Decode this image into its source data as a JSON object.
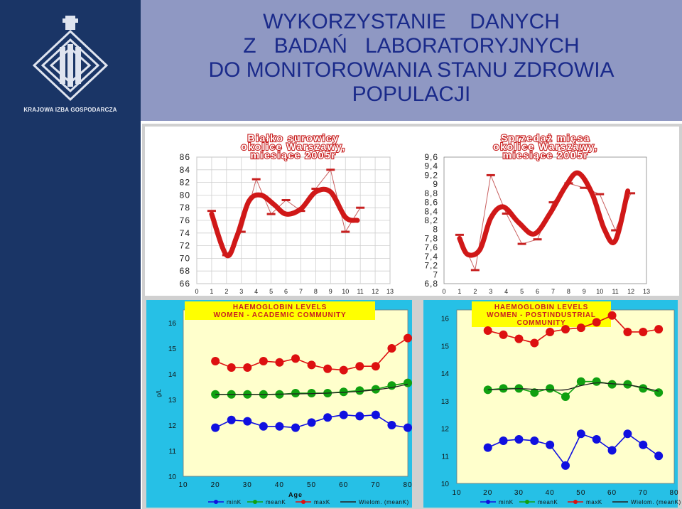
{
  "slide": {
    "title_lines": [
      "WYKORZYSTANIE    DANYCH",
      "Z   BADAŃ   LABORATORYJNYCH",
      "DO MONITOROWANIA STANU ZDROWIA",
      "POPULACJI"
    ],
    "logo_caption": "KRAJOWA IZBA GOSPODARCZA",
    "colors": {
      "sidebar": "#1a3566",
      "header": "#8f98c3",
      "title_text": "#1a2a8a",
      "chart_title": "#c82020",
      "hb_bg": "#26c0e6",
      "hb_plot": "#ffffcc"
    }
  },
  "chart_data": [
    {
      "id": "bialko",
      "type": "line",
      "title_lines": [
        "Białko surowicy",
        "okolice Warszawy,",
        "miesiące 2005r"
      ],
      "x_ticks": [
        "0",
        "1",
        "2",
        "3",
        "4",
        "5",
        "6",
        "7",
        "8",
        "9",
        "10",
        "11",
        "12",
        "13"
      ],
      "y_ticks": [
        "66",
        "68",
        "70",
        "72",
        "74",
        "76",
        "78",
        "80",
        "82",
        "84",
        "86"
      ],
      "ylim": [
        66,
        86
      ],
      "xlim": [
        0,
        13
      ],
      "grid": true,
      "series": [
        {
          "x": [
            1,
            2,
            3,
            4,
            5,
            6,
            7,
            8,
            9,
            10,
            11,
            12
          ],
          "values": [
            77.5,
            70.5,
            74.2,
            82.5,
            77,
            79.2,
            77.5,
            81,
            84,
            74.2,
            78,
            null
          ],
          "style": "thin-markers"
        }
      ],
      "trend": [
        77,
        70.5,
        73.5,
        79,
        80,
        78.5,
        77,
        77.8,
        80.5,
        80.5,
        76.5,
        76
      ],
      "trend_x": [
        1,
        2,
        2.7,
        3.5,
        4.3,
        5.2,
        6,
        7,
        8,
        9,
        10,
        10.8
      ]
    },
    {
      "id": "sprzedaz",
      "type": "line",
      "title_lines": [
        "Sprzedaż mięsa",
        "okolice Warszawy,",
        "miesiące 2005r"
      ],
      "x_ticks": [
        "0",
        "1",
        "2",
        "3",
        "4",
        "5",
        "6",
        "7",
        "8",
        "9",
        "10",
        "11",
        "12",
        "13"
      ],
      "y_ticks": [
        "6,8",
        "7",
        "7,2",
        "7,4",
        "7,6",
        "7,8",
        "8",
        "8,2",
        "8,4",
        "8,6",
        "8,8",
        "9",
        "9,2",
        "9,4",
        "9,6"
      ],
      "ylim": [
        6.8,
        9.6
      ],
      "xlim": [
        0,
        13
      ],
      "grid": false,
      "series": [
        {
          "x": [
            1,
            2,
            3,
            4,
            5,
            6,
            7,
            8,
            9,
            10,
            11,
            12
          ],
          "values": [
            7.88,
            7.1,
            9.2,
            8.35,
            7.68,
            7.78,
            8.6,
            9.02,
            8.92,
            8.78,
            7.98,
            8.8
          ],
          "style": "thin-markers"
        }
      ],
      "trend": [
        7.8,
        7.45,
        7.55,
        8.25,
        8.5,
        8.15,
        7.9,
        8.35,
        8.95,
        9.25,
        8.8,
        8.0,
        7.75,
        8.85
      ],
      "trend_x": [
        1,
        1.5,
        2.3,
        3,
        3.8,
        4.8,
        5.8,
        6.8,
        7.8,
        8.6,
        9.5,
        10.3,
        11,
        11.8
      ]
    },
    {
      "id": "hb-academic",
      "type": "line",
      "title_lines": [
        "HAEMOGLOBIN LEVELS",
        "WOMEN - ACADEMIC COMMUNITY"
      ],
      "xlabel": "Age",
      "ylabel": "g/L",
      "y_ticks": [
        "10",
        "11",
        "12",
        "13",
        "14",
        "15",
        "16"
      ],
      "x_ticks": [
        "10",
        "20",
        "30",
        "40",
        "50",
        "60",
        "70",
        "80"
      ],
      "ylim": [
        10,
        16.5
      ],
      "xlim": [
        10,
        80
      ],
      "legend": [
        "minK",
        "meanK",
        "maxK",
        "Wielom. (meanK)"
      ],
      "legend_position": "bottom",
      "x": [
        20,
        25,
        30,
        35,
        40,
        45,
        50,
        55,
        60,
        65,
        70,
        75,
        80
      ],
      "series": [
        {
          "name": "minK",
          "color": "#1010e0",
          "values": [
            11.9,
            12.2,
            12.15,
            11.95,
            11.95,
            11.9,
            12.1,
            12.3,
            12.4,
            12.35,
            12.4,
            12.0,
            11.9
          ]
        },
        {
          "name": "meanK",
          "color": "#10a010",
          "values": [
            13.2,
            13.2,
            13.2,
            13.2,
            13.2,
            13.25,
            13.25,
            13.25,
            13.3,
            13.35,
            13.4,
            13.55,
            13.65
          ]
        },
        {
          "name": "maxK",
          "color": "#dd1010",
          "values": [
            14.5,
            14.25,
            14.25,
            14.5,
            14.45,
            14.6,
            14.35,
            14.2,
            14.15,
            14.3,
            14.3,
            15.0,
            15.4
          ]
        },
        {
          "name": "Wielom. (meanK)",
          "color": "#202020",
          "values": [
            13.2,
            13.2,
            13.2,
            13.2,
            13.21,
            13.22,
            13.23,
            13.25,
            13.28,
            13.32,
            13.38,
            13.47,
            13.6
          ]
        }
      ]
    },
    {
      "id": "hb-postindustrial",
      "type": "line",
      "title_lines": [
        "HAEMOGLOBIN LEVELS",
        "WOMEN - POSTINDUSTRIAL",
        "COMMUNITY"
      ],
      "y_ticks": [
        "10",
        "11",
        "12",
        "13",
        "14",
        "15",
        "16"
      ],
      "x_ticks": [
        "10",
        "20",
        "30",
        "40",
        "50",
        "60",
        "70",
        "80"
      ],
      "ylim": [
        10,
        16.3
      ],
      "xlim": [
        10,
        80
      ],
      "legend": [
        "minK",
        "meanK",
        "maxK",
        "Wielom. (meanK)"
      ],
      "legend_position": "bottom",
      "x": [
        20,
        25,
        30,
        35,
        40,
        45,
        50,
        55,
        60,
        65,
        70,
        75,
        80
      ],
      "series": [
        {
          "name": "minK",
          "color": "#1010e0",
          "values": [
            11.3,
            11.55,
            11.6,
            11.55,
            11.4,
            10.65,
            11.8,
            11.6,
            11.2,
            11.8,
            11.4,
            11.0,
            null
          ]
        },
        {
          "name": "meanK",
          "color": "#10a010",
          "values": [
            13.4,
            13.45,
            13.45,
            13.3,
            13.45,
            13.15,
            13.7,
            13.7,
            13.6,
            13.6,
            13.45,
            13.3,
            null
          ]
        },
        {
          "name": "maxK",
          "color": "#dd1010",
          "values": [
            15.55,
            15.4,
            15.25,
            15.1,
            15.5,
            15.6,
            15.65,
            15.85,
            16.1,
            15.5,
            15.5,
            15.6,
            null
          ]
        },
        {
          "name": "Wielom. (meanK)",
          "color": "#202020",
          "values": [
            13.4,
            13.42,
            13.44,
            13.42,
            13.4,
            13.4,
            13.55,
            13.65,
            13.62,
            13.58,
            13.48,
            13.35,
            null
          ]
        }
      ]
    }
  ]
}
